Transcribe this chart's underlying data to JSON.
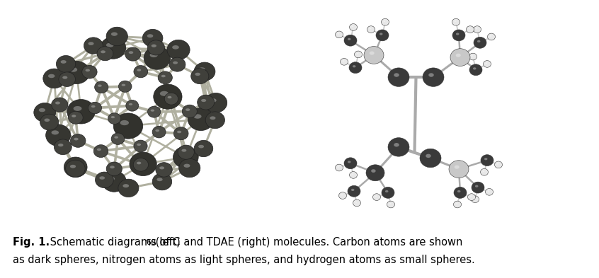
{
  "caption_bold": "Fig. 1.",
  "caption_line1_normal": " Schematic diagrams of C",
  "caption_subscript": "60",
  "caption_line1_end": " (left) and TDAE (right) molecules. Carbon atoms are shown",
  "caption_line2": "as dark spheres, nitrogen atoms as light spheres, and hydrogen atoms as small spheres.",
  "background_color": "#ffffff",
  "fig_width": 8.46,
  "fig_height": 3.93,
  "dark_carbon": "#3a3a3a",
  "light_nitrogen": "#c8c8c8",
  "hydrogen": "#e8e8e8",
  "bond_color": "#b0b0b0",
  "caption_fontsize": 10.5
}
